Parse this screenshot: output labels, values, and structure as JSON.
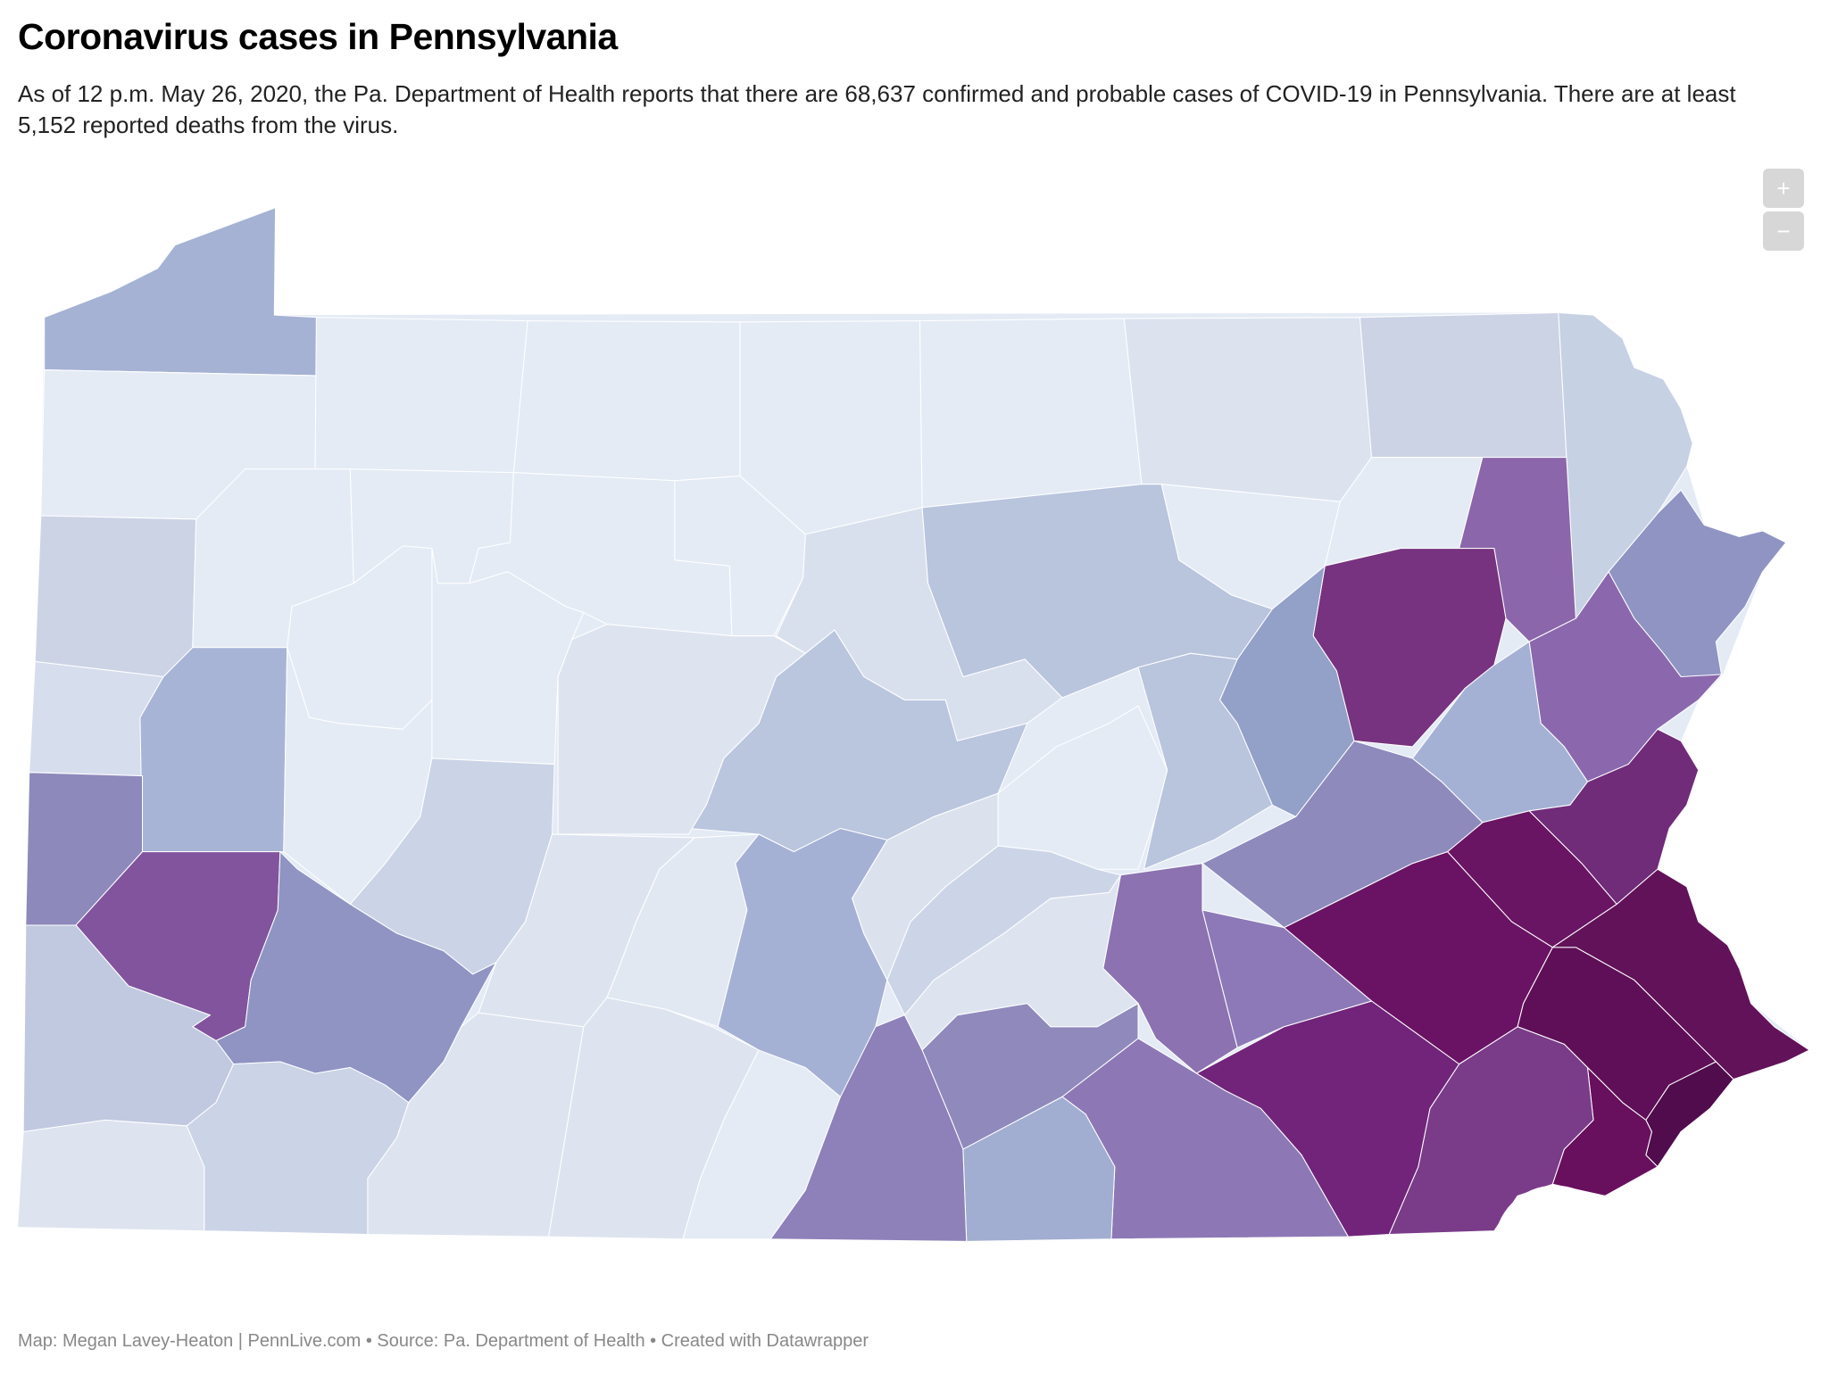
{
  "header": {
    "title": "Coronavirus cases in Pennsylvania",
    "subtitle": "As of 12 p.m. May 26, 2020, the Pa. Department of Health reports that there are 68,637 confirmed and probable cases of COVID-19 in Pennsylvania. There are at least 5,152 reported deaths from the virus."
  },
  "controls": {
    "zoom_in": "+",
    "zoom_out": "−"
  },
  "map": {
    "base_fill": "#e4ebf5",
    "border_color": "#ffffff",
    "fills": [
      "#a5b2d4",
      "#e4ebf5",
      "#e4ebf5",
      "#e4ebf5",
      "#e4ebf5",
      "#e4ebf5",
      "#dce3ef",
      "#cbd3e5",
      "#c7d1e4",
      "#cbd3e5",
      "#e4ebf5",
      "#e4ebf5",
      "#e4ebf5",
      "#e4ebf5",
      "#d9e0ed",
      "#b9c4dd",
      "#e4ebf5",
      "#e4ebf5",
      "#8b66aa",
      "#77337f",
      "#8f94c2",
      "#8b68ad",
      "#a5b1d4",
      "#702b79",
      "#6a1464",
      "#621259",
      "#5f0f57",
      "#500c4d",
      "#680f5e",
      "#7a3b89",
      "#6a1364",
      "#71247a",
      "#8f8abc",
      "#8d79b7",
      "#8c72b1",
      "#8d78b5",
      "#a1aed1",
      "#8f89bc",
      "#8e80b9",
      "#dde4ef",
      "#e4ebf5",
      "#b9c4dd",
      "#bac5de",
      "#dee4ef",
      "#e4ebf5",
      "#e4ebf5",
      "#d6dded",
      "#a8b4d6",
      "#8d89bb",
      "#e4ebf5",
      "#cbd4e6",
      "#82549e",
      "#8f94c3",
      "#c1c9e0",
      "#dde3ef",
      "#cbd3e6",
      "#dde4ef",
      "#dee4ef",
      "#dde4ef",
      "#e4ebf5",
      "#e2e8f2",
      "#a5b1d4",
      "#dbe2ee",
      "#ccd5e7",
      "#93a0c8"
    ]
  },
  "footer": {
    "credit": "Map: Megan Lavey-Heaton | PennLive.com • Source: Pa. Department of Health • Created with Datawrapper"
  }
}
